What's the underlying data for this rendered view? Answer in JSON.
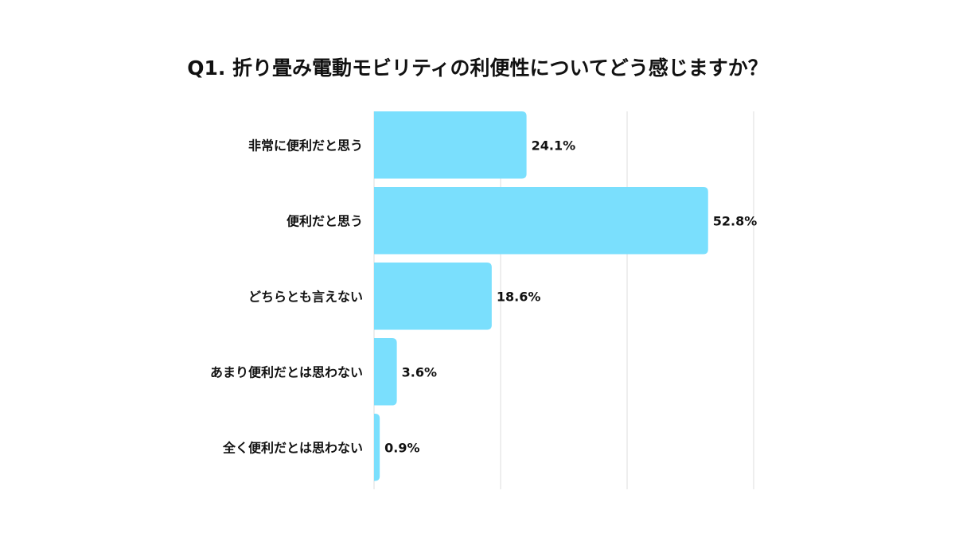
{
  "chart_data": {
    "type": "bar",
    "orientation": "horizontal",
    "title": "Q1. 折り畳み電動モビリティの利便性についてどう感じますか？",
    "categories": [
      "非常に便利だと思う",
      "便利だと思う",
      "どちらとも言えない",
      "あまり便利だとは思わない",
      "全く便利だとは思わない"
    ],
    "values": [
      24.1,
      52.8,
      18.6,
      3.6,
      0.9
    ],
    "value_labels": [
      "24.1%",
      "52.8%",
      "18.6%",
      "3.6%",
      "0.9%"
    ],
    "xlim": [
      0,
      60
    ],
    "grid_values": [
      0,
      20,
      40,
      60
    ],
    "grid": true,
    "xlabel": "",
    "ylabel": "",
    "bar_color": "#7ADFFD",
    "grid_color": "#dddddd"
  }
}
